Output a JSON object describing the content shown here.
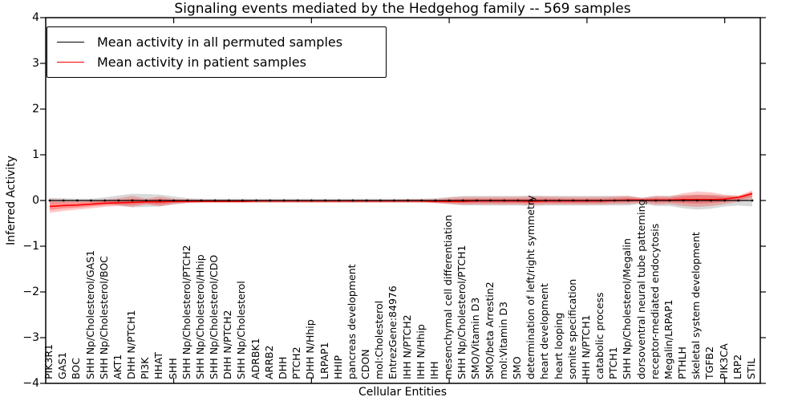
{
  "chart_data": {
    "type": "line",
    "title": "Signaling events mediated by the Hedgehog family -- 569 samples",
    "xlabel": "Cellular Entities",
    "ylabel": "Inferred Activity",
    "ylim": [
      -4,
      4
    ],
    "yticks": [
      -4,
      -3,
      -2,
      -1,
      0,
      1,
      2,
      3,
      4
    ],
    "grid": false,
    "legend_position": "upper left",
    "categories": [
      "PIK3R1",
      "GAS1",
      "BOC",
      "SHH Np/Cholesterol/GAS1",
      "SHH Np/Cholesterol/BOC",
      "AKT1",
      "DHH N/PTCH1",
      "PI3K",
      "HHAT",
      "SHH",
      "SHH Np/Cholesterol/PTCH2",
      "SHH Np/Cholesterol/Hhip",
      "SHH Np/Cholesterol/CDO",
      "DHH N/PTCH2",
      "SHH Np/Cholesterol",
      "ADRBK1",
      "ARRB2",
      "DHH",
      "PTCH2",
      "DHH N/Hhip",
      "LRPAP1",
      "HHIP",
      "pancreas development",
      "CDON",
      "mol:Cholesterol",
      "EntrezGene:84976",
      "IHH N/PTCH2",
      "IHH N/Hhip",
      "IHH",
      "mesenchymal cell differentiation",
      "SHH Np/Cholesterol/PTCH1",
      "SMO/Vitamin D3",
      "SMO/beta Arrestin2",
      "mol:Vitamin D3",
      "SMO",
      "determination of left/right symmetry",
      "heart development",
      "heart looping",
      "somite specification",
      "IHH N/PTCH1",
      "catabolic process",
      "PTCH1",
      "SHH Np/Cholesterol/Megalin",
      "dorsoventral neural tube patterning",
      "receptor-mediated endocytosis",
      "Megalin/LRPAP1",
      "PTHLH",
      "skeletal system development",
      "TGFB2",
      "PIK3CA",
      "LRP2",
      "STIL"
    ],
    "series": [
      {
        "name": "Mean activity in all permuted samples",
        "color": "#000000",
        "band_color": "#808080",
        "values": [
          0,
          0,
          0,
          0,
          0,
          0,
          0,
          0,
          0,
          0,
          0,
          0,
          0,
          0,
          0,
          0,
          0,
          0,
          0,
          0,
          0,
          0,
          0,
          0,
          0,
          0,
          0,
          0,
          0,
          0,
          0,
          0,
          0,
          0,
          0,
          0,
          0,
          0,
          0,
          0,
          0,
          0,
          0,
          0,
          0,
          0,
          0,
          0,
          0,
          0,
          0,
          0
        ],
        "band_upper": [
          0.06,
          0.05,
          0.04,
          0.04,
          0.07,
          0.11,
          0.15,
          0.14,
          0.13,
          0.09,
          0.05,
          0.04,
          0.04,
          0.04,
          0.04,
          0.04,
          0.04,
          0.04,
          0.04,
          0.04,
          0.04,
          0.04,
          0.04,
          0.04,
          0.04,
          0.04,
          0.04,
          0.04,
          0.05,
          0.08,
          0.1,
          0.1,
          0.1,
          0.1,
          0.1,
          0.11,
          0.1,
          0.1,
          0.1,
          0.1,
          0.1,
          0.1,
          0.1,
          0.06,
          0.1,
          0.1,
          0.12,
          0.13,
          0.13,
          0.11,
          0.09,
          0.1
        ],
        "band_lower": [
          -0.06,
          -0.05,
          -0.04,
          -0.04,
          -0.07,
          -0.11,
          -0.15,
          -0.14,
          -0.13,
          -0.09,
          -0.05,
          -0.04,
          -0.04,
          -0.04,
          -0.04,
          -0.04,
          -0.04,
          -0.04,
          -0.04,
          -0.04,
          -0.04,
          -0.04,
          -0.04,
          -0.04,
          -0.04,
          -0.04,
          -0.04,
          -0.04,
          -0.05,
          -0.08,
          -0.11,
          -0.11,
          -0.11,
          -0.11,
          -0.11,
          -0.12,
          -0.11,
          -0.11,
          -0.11,
          -0.11,
          -0.11,
          -0.11,
          -0.11,
          -0.07,
          -0.12,
          -0.12,
          -0.17,
          -0.2,
          -0.18,
          -0.13,
          -0.11,
          -0.13
        ]
      },
      {
        "name": "Mean activity in patient samples",
        "color": "#ff0000",
        "band_color": "#ff0000",
        "values": [
          -0.13,
          -0.11,
          -0.1,
          -0.08,
          -0.06,
          -0.05,
          -0.04,
          -0.03,
          -0.03,
          -0.02,
          -0.02,
          -0.02,
          -0.02,
          -0.02,
          -0.02,
          -0.01,
          -0.01,
          -0.01,
          -0.01,
          -0.01,
          -0.01,
          -0.01,
          -0.01,
          -0.01,
          -0.01,
          -0.01,
          -0.01,
          -0.01,
          -0.02,
          -0.02,
          -0.02,
          -0.01,
          -0.01,
          -0.01,
          -0.01,
          -0.02,
          -0.01,
          -0.01,
          -0.01,
          -0.01,
          -0.01,
          0.0,
          0.01,
          0.01,
          0.01,
          0.01,
          0.02,
          0.02,
          0.02,
          0.03,
          0.07,
          0.15
        ],
        "band_upper": [
          0.03,
          0.02,
          0.01,
          0.01,
          0.02,
          0.05,
          0.1,
          0.04,
          0.09,
          0.04,
          0.03,
          0.02,
          0.02,
          0.02,
          0.02,
          0.02,
          0.02,
          0.02,
          0.02,
          0.02,
          0.02,
          0.02,
          0.02,
          0.02,
          0.02,
          0.02,
          0.03,
          0.03,
          0.03,
          0.06,
          0.08,
          0.08,
          0.08,
          0.08,
          0.08,
          0.09,
          0.09,
          0.08,
          0.08,
          0.08,
          0.08,
          0.09,
          0.1,
          0.06,
          0.1,
          0.09,
          0.16,
          0.2,
          0.18,
          0.13,
          0.11,
          0.22
        ],
        "band_lower": [
          -0.27,
          -0.23,
          -0.2,
          -0.17,
          -0.14,
          -0.12,
          -0.14,
          -0.09,
          -0.13,
          -0.08,
          -0.06,
          -0.05,
          -0.05,
          -0.05,
          -0.05,
          -0.05,
          -0.05,
          -0.05,
          -0.05,
          -0.05,
          -0.05,
          -0.05,
          -0.05,
          -0.05,
          -0.05,
          -0.05,
          -0.05,
          -0.05,
          -0.06,
          -0.08,
          -0.09,
          -0.09,
          -0.09,
          -0.09,
          -0.09,
          -0.1,
          -0.09,
          -0.09,
          -0.09,
          -0.09,
          -0.09,
          -0.08,
          -0.08,
          -0.05,
          -0.09,
          -0.08,
          -0.12,
          -0.14,
          -0.12,
          -0.08,
          -0.03,
          0.04
        ]
      }
    ]
  }
}
